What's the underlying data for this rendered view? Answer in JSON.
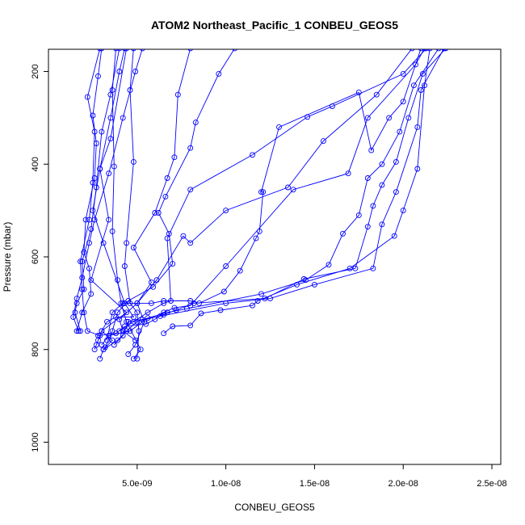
{
  "chart_data": {
    "type": "line",
    "title": "ATOM2 Northeast_Pacific_1 CONBEU_GEOS5",
    "xlabel": "CONBEU_GEOS5",
    "ylabel": "Pressure (mbar)",
    "xlim": [
      0.0,
      2.55e-08
    ],
    "ylim": [
      1048,
      152
    ],
    "y_reversed": true,
    "grid": false,
    "marker": "open-circle",
    "series_color": "#0000ff",
    "x_ticks": [
      {
        "value": 5e-09,
        "label": "5.0e-09"
      },
      {
        "value": 1e-08,
        "label": "1.0e-08"
      },
      {
        "value": 1.5e-08,
        "label": "1.5e-08"
      },
      {
        "value": 2e-08,
        "label": "2.0e-08"
      },
      {
        "value": 2.5e-08,
        "label": "2.5e-08"
      }
    ],
    "y_ticks": [
      {
        "value": 200,
        "label": "200"
      },
      {
        "value": 400,
        "label": "400"
      },
      {
        "value": 600,
        "label": "600"
      },
      {
        "value": 800,
        "label": "800"
      },
      {
        "value": 1000,
        "label": "1000"
      }
    ],
    "profiles": [
      [
        [
          2.9e-09,
          820
        ],
        [
          3.1e-09,
          800
        ],
        [
          3.6e-09,
          780
        ],
        [
          3e-09,
          760
        ],
        [
          4.4e-09,
          720
        ],
        [
          2.4e-09,
          650
        ],
        [
          3.4e-09,
          520
        ],
        [
          2.9e-09,
          410
        ],
        [
          3.5e-09,
          300
        ],
        [
          4e-09,
          200
        ],
        [
          4.3e-09,
          150
        ]
      ],
      [
        [
          2.6e-09,
          800
        ],
        [
          2.7e-09,
          790
        ],
        [
          2.9e-09,
          770
        ],
        [
          2.2e-09,
          760
        ],
        [
          2e-09,
          720
        ],
        [
          1.9e-09,
          670
        ],
        [
          1.8e-09,
          610
        ],
        [
          2.3e-09,
          520
        ],
        [
          2.5e-09,
          440
        ],
        [
          2.6e-09,
          330
        ],
        [
          2.2e-09,
          255
        ],
        [
          2.9e-09,
          150
        ]
      ],
      [
        [
          4.8e-09,
          820
        ],
        [
          5.2e-09,
          800
        ],
        [
          4.4e-09,
          740
        ],
        [
          4.1e-09,
          700
        ],
        [
          3.9e-09,
          650
        ],
        [
          3.6e-09,
          545
        ],
        [
          3.7e-09,
          405
        ],
        [
          3.6e-09,
          240
        ],
        [
          3.8e-09,
          150
        ]
      ],
      [
        [
          5e-09,
          820
        ],
        [
          5.1e-09,
          760
        ],
        [
          5e-09,
          720
        ],
        [
          4.6e-09,
          700
        ],
        [
          4.3e-09,
          620
        ],
        [
          4.4e-09,
          570
        ],
        [
          4.8e-09,
          395
        ],
        [
          4.6e-09,
          240
        ],
        [
          4.8e-09,
          150
        ]
      ],
      [
        [
          4.5e-09,
          810
        ],
        [
          4.9e-09,
          790
        ],
        [
          5.4e-09,
          740
        ],
        [
          5e-09,
          700
        ],
        [
          5.8e-09,
          655
        ],
        [
          4.8e-09,
          580
        ],
        [
          6e-09,
          505
        ],
        [
          6.7e-09,
          430
        ],
        [
          7.1e-09,
          385
        ],
        [
          7.3e-09,
          250
        ],
        [
          8e-09,
          150
        ]
      ],
      [
        [
          6.5e-09,
          765
        ],
        [
          7e-09,
          750
        ],
        [
          8e-09,
          748
        ],
        [
          8.6e-09,
          722
        ],
        [
          9.7e-09,
          715
        ],
        [
          1.15e-08,
          705
        ],
        [
          1.18e-08,
          695
        ],
        [
          1.4e-08,
          660
        ],
        [
          1.7e-08,
          625
        ],
        [
          1.95e-08,
          555
        ],
        [
          2e-08,
          500
        ],
        [
          2.08e-08,
          410
        ],
        [
          2.12e-08,
          230
        ],
        [
          2.15e-08,
          150
        ]
      ],
      [
        [
          3.3e-09,
          780
        ],
        [
          3.6e-09,
          720
        ],
        [
          4.2e-09,
          700
        ],
        [
          5.8e-09,
          700
        ],
        [
          6.5e-09,
          695
        ],
        [
          8e-09,
          695
        ],
        [
          8.5e-09,
          700
        ],
        [
          9.9e-09,
          675
        ],
        [
          1.08e-08,
          630
        ],
        [
          1.17e-08,
          560
        ],
        [
          1.19e-08,
          545
        ],
        [
          1.21e-08,
          460
        ],
        [
          1.2e-08,
          460
        ],
        [
          1.3e-08,
          320
        ],
        [
          1.75e-08,
          245
        ],
        [
          1.82e-08,
          370
        ],
        [
          1.92e-08,
          300
        ],
        [
          2e-08,
          265
        ],
        [
          2.1e-08,
          150
        ]
      ],
      [
        [
          2.8e-09,
          770
        ],
        [
          3.8e-09,
          765
        ],
        [
          4.3e-09,
          750
        ],
        [
          5.5e-09,
          745
        ],
        [
          6e-09,
          735
        ],
        [
          6.5e-09,
          720
        ],
        [
          7.1e-09,
          710
        ],
        [
          8e-09,
          705
        ],
        [
          1e-08,
          620
        ],
        [
          1.38e-08,
          455
        ],
        [
          1.69e-08,
          420
        ],
        [
          1.8e-08,
          300
        ],
        [
          2.07e-08,
          185
        ],
        [
          2.12e-08,
          150
        ]
      ],
      [
        [
          3e-09,
          790
        ],
        [
          3.4e-09,
          770
        ],
        [
          4.6e-09,
          760
        ],
        [
          5.6e-09,
          732
        ],
        [
          6.7e-09,
          720
        ],
        [
          7.8e-09,
          712
        ],
        [
          1.2e-08,
          680
        ],
        [
          1.45e-08,
          650
        ],
        [
          1.58e-08,
          617
        ],
        [
          1.66e-08,
          550
        ],
        [
          1.75e-08,
          510
        ],
        [
          1.8e-08,
          430
        ],
        [
          1.88e-08,
          400
        ],
        [
          1.98e-08,
          330
        ],
        [
          2.06e-08,
          230
        ],
        [
          2.2e-08,
          150
        ]
      ],
      [
        [
          3.1e-09,
          800
        ],
        [
          3.9e-09,
          780
        ],
        [
          4.4e-09,
          760
        ],
        [
          5e-09,
          740
        ],
        [
          6.5e-09,
          725
        ],
        [
          7.2e-09,
          715
        ],
        [
          8.2e-09,
          700
        ],
        [
          1.22e-08,
          690
        ],
        [
          1.44e-08,
          648
        ],
        [
          1.73e-08,
          625
        ],
        [
          1.8e-08,
          535
        ],
        [
          1.83e-08,
          490
        ],
        [
          1.88e-08,
          445
        ],
        [
          1.96e-08,
          395
        ],
        [
          2.03e-08,
          300
        ],
        [
          2.11e-08,
          205
        ],
        [
          2.24e-08,
          150
        ]
      ],
      [
        [
          3.7e-09,
          790
        ],
        [
          4.2e-09,
          770
        ],
        [
          4.5e-09,
          740
        ],
        [
          5.3e-09,
          735
        ],
        [
          6.3e-09,
          728
        ],
        [
          1e-08,
          700
        ],
        [
          1.25e-08,
          690
        ],
        [
          1.5e-08,
          660
        ],
        [
          1.83e-08,
          625
        ],
        [
          1.88e-08,
          530
        ],
        [
          1.96e-08,
          460
        ],
        [
          2.08e-08,
          320
        ],
        [
          2.1e-08,
          240
        ],
        [
          2.23e-08,
          150
        ]
      ],
      [
        [
          2.8e-09,
          780
        ],
        [
          3e-09,
          760
        ],
        [
          3.3e-09,
          740
        ],
        [
          3.8e-09,
          730
        ],
        [
          4.8e-09,
          730
        ],
        [
          4.3e-09,
          700
        ],
        [
          3.1e-09,
          570
        ],
        [
          2.5e-09,
          500
        ],
        [
          2.9e-09,
          410
        ],
        [
          3.5e-09,
          345
        ],
        [
          4.4e-09,
          150
        ]
      ],
      [
        [
          4.9e-09,
          780
        ],
        [
          4.2e-09,
          760
        ],
        [
          4e-09,
          735
        ],
        [
          5e-09,
          700
        ],
        [
          6.1e-09,
          650
        ],
        [
          7.6e-09,
          555
        ],
        [
          8e-09,
          570
        ],
        [
          1e-08,
          500
        ],
        [
          1.35e-08,
          450
        ],
        [
          1.55e-08,
          350
        ],
        [
          1.85e-08,
          250
        ],
        [
          2.05e-08,
          150
        ]
      ],
      [
        [
          3.2e-09,
          795
        ],
        [
          3.6e-09,
          760
        ],
        [
          3.9e-09,
          720
        ],
        [
          4.5e-09,
          695
        ],
        [
          5.9e-09,
          665
        ],
        [
          7e-09,
          615
        ],
        [
          6.8e-09,
          550
        ],
        [
          6.2e-09,
          505
        ],
        [
          6.6e-09,
          470
        ],
        [
          8e-09,
          365
        ],
        [
          8.3e-09,
          310
        ],
        [
          9.6e-09,
          205
        ],
        [
          1.05e-08,
          150
        ]
      ],
      [
        [
          1.6e-09,
          760
        ],
        [
          1.9e-09,
          720
        ],
        [
          2.4e-09,
          680
        ],
        [
          2.3e-09,
          625
        ],
        [
          2e-09,
          590
        ],
        [
          2.1e-09,
          520
        ],
        [
          2.6e-09,
          430
        ],
        [
          2.7e-09,
          355
        ],
        [
          2.5e-09,
          295
        ],
        [
          2.8e-09,
          210
        ],
        [
          3e-09,
          150
        ]
      ],
      [
        [
          1.8e-09,
          760
        ],
        [
          1.5e-09,
          720
        ],
        [
          1.6e-09,
          700
        ],
        [
          2e-09,
          670
        ],
        [
          1.9e-09,
          610
        ],
        [
          2.4e-09,
          540
        ],
        [
          2.7e-09,
          450
        ],
        [
          3e-09,
          330
        ],
        [
          3.5e-09,
          250
        ],
        [
          4e-09,
          150
        ]
      ],
      [
        [
          1.7e-09,
          760
        ],
        [
          1.4e-09,
          730
        ],
        [
          1.6e-09,
          690
        ],
        [
          1.9e-09,
          645
        ],
        [
          2.3e-09,
          570
        ],
        [
          2.6e-09,
          520
        ],
        [
          3.4e-09,
          420
        ],
        [
          4.2e-09,
          300
        ],
        [
          4.9e-09,
          200
        ],
        [
          5.3e-09,
          150
        ]
      ],
      [
        [
          4e-09,
          760
        ],
        [
          4.8e-09,
          740
        ],
        [
          5.6e-09,
          720
        ],
        [
          6.5e-09,
          700
        ],
        [
          6.9e-09,
          695
        ],
        [
          6.7e-09,
          560
        ],
        [
          8e-09,
          455
        ],
        [
          1.15e-08,
          380
        ],
        [
          1.46e-08,
          298
        ],
        [
          1.6e-08,
          275
        ],
        [
          2e-08,
          205
        ],
        [
          2.13e-08,
          150
        ]
      ]
    ]
  }
}
